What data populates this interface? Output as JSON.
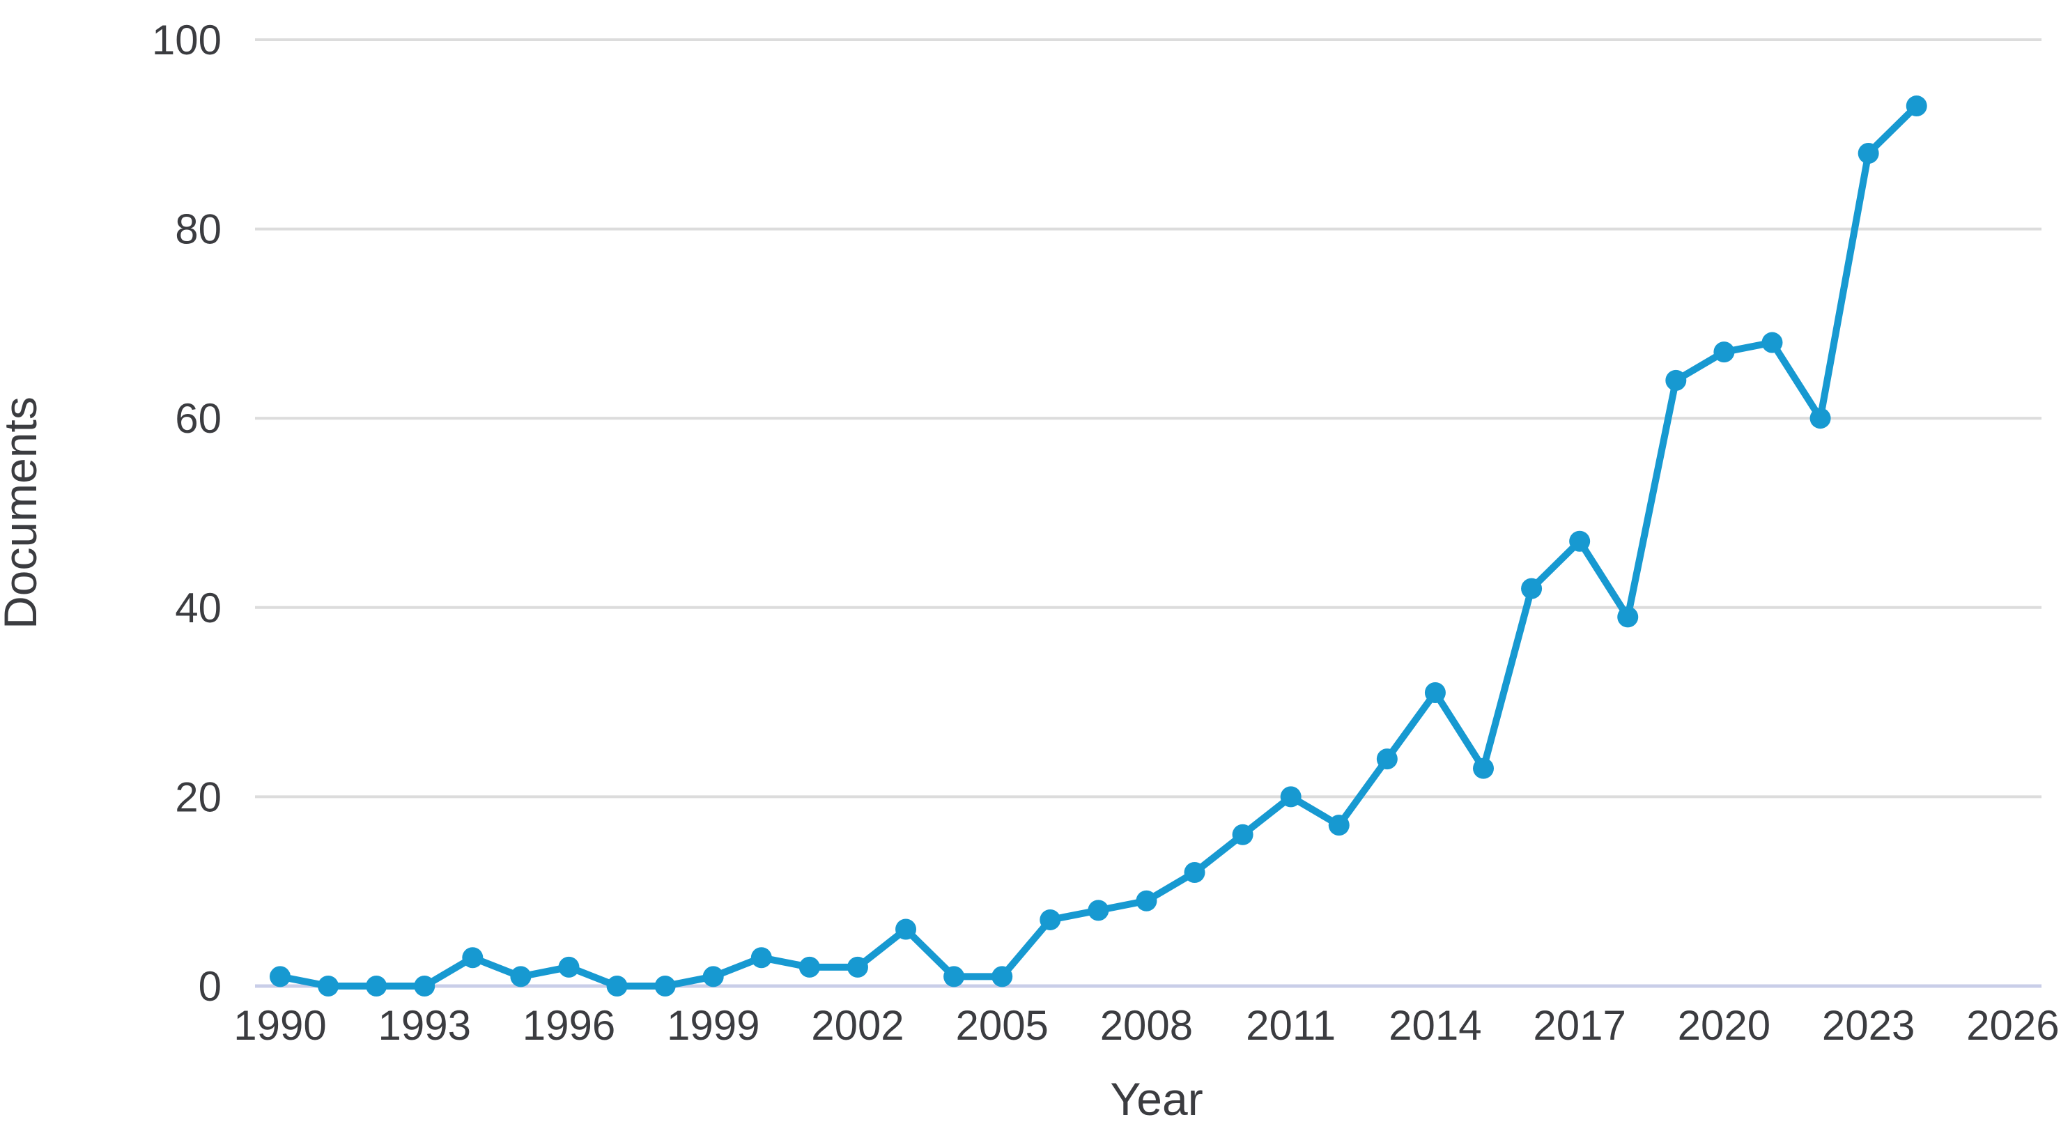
{
  "chart_data": {
    "type": "line",
    "title": "",
    "xlabel": "Year",
    "ylabel": "Documents",
    "series_name": "Documents",
    "x": [
      1990,
      1991,
      1992,
      1993,
      1994,
      1995,
      1996,
      1997,
      1998,
      1999,
      2000,
      2001,
      2002,
      2003,
      2004,
      2005,
      2006,
      2007,
      2008,
      2009,
      2010,
      2011,
      2012,
      2013,
      2014,
      2015,
      2016,
      2017,
      2018,
      2019,
      2020,
      2021,
      2022,
      2023,
      2024
    ],
    "values": [
      1,
      0,
      0,
      0,
      3,
      1,
      2,
      0,
      0,
      1,
      3,
      2,
      2,
      6,
      1,
      1,
      7,
      8,
      9,
      12,
      16,
      20,
      17,
      24,
      31,
      23,
      42,
      47,
      39,
      64,
      67,
      68,
      60,
      88,
      93
    ],
    "x_ticks": [
      1990,
      1993,
      1996,
      1999,
      2002,
      2005,
      2008,
      2011,
      2014,
      2017,
      2020,
      2023,
      2026
    ],
    "y_ticks": [
      0,
      20,
      40,
      60,
      80,
      100
    ],
    "xlim": [
      1989.5,
      2027
    ],
    "ylim": [
      0,
      100
    ],
    "grid": "horizontal",
    "legend": "none",
    "colors": {
      "line": "#1799d1",
      "marker": "#1799d1",
      "gridline": "#dcdcdc",
      "axis_baseline": "#c9cee8",
      "text": "#3b3c40",
      "background": "#ffffff"
    }
  }
}
